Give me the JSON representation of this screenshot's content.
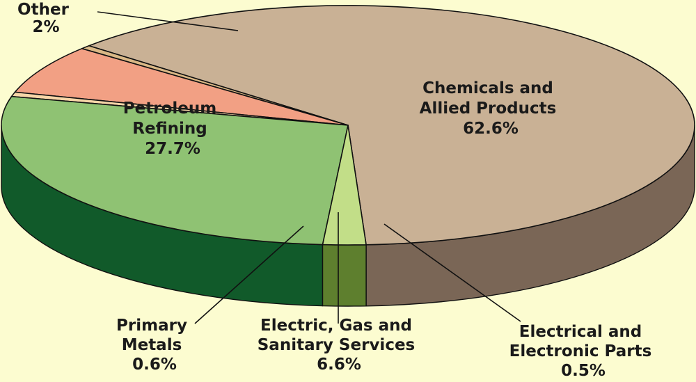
{
  "chart_data": {
    "type": "pie",
    "style": "3d-exploded-tilted",
    "title": "",
    "slices": [
      {
        "name_lines": [
          "Chemicals and",
          "Allied Products"
        ],
        "value": 62.6,
        "value_label": "62.6%",
        "color": "#c9b195",
        "side_color": "#7a6656"
      },
      {
        "name_lines": [
          "Electrical and",
          "Electronic Parts"
        ],
        "value": 0.5,
        "value_label": "0.5%",
        "color": "#dab886",
        "side_color": "#9a6d2a"
      },
      {
        "name_lines": [
          "Electric, Gas and",
          "Sanitary Services"
        ],
        "value": 6.6,
        "value_label": "6.6%",
        "color": "#f2a084",
        "side_color": "#7a0f1a"
      },
      {
        "name_lines": [
          "Primary",
          "Metals"
        ],
        "value": 0.6,
        "value_label": "0.6%",
        "color": "#f7d6a8",
        "side_color": "#8a6222"
      },
      {
        "name_lines": [
          "Petroleum",
          "Refining"
        ],
        "value": 27.7,
        "value_label": "27.7%",
        "color": "#8fc273",
        "side_color": "#115a2a"
      },
      {
        "name_lines": [
          "Other"
        ],
        "value": 2.0,
        "value_label": "2%",
        "color": "#c2de88",
        "side_color": "#5e7f2e"
      }
    ]
  }
}
